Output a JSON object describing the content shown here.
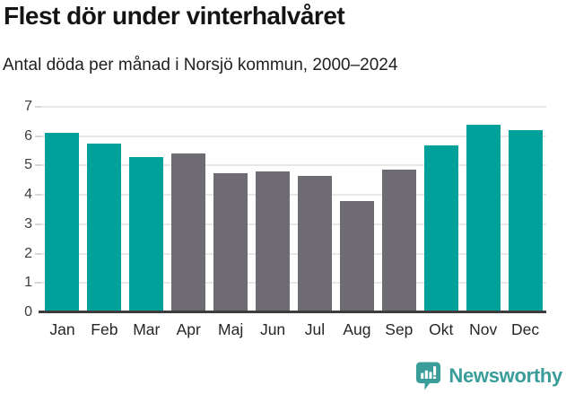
{
  "header": {
    "title": "Flest dör under vinterhalvåret",
    "subtitle": "Antal döda per månad i Norsjö kommun, 2000–2024"
  },
  "chart_data": {
    "type": "bar",
    "title": "Flest dör under vinterhalvåret",
    "subtitle": "Antal döda per månad i Norsjö kommun, 2000–2024",
    "categories": [
      "Jan",
      "Feb",
      "Mar",
      "Apr",
      "Maj",
      "Jun",
      "Jul",
      "Aug",
      "Sep",
      "Okt",
      "Nov",
      "Dec"
    ],
    "values": [
      6.1,
      5.75,
      5.3,
      5.4,
      4.75,
      4.8,
      4.65,
      3.8,
      4.85,
      5.7,
      6.4,
      6.2
    ],
    "bar_colors": [
      "#00a19a",
      "#00a19a",
      "#00a19a",
      "#6e6c72",
      "#6e6c72",
      "#6e6c72",
      "#6e6c72",
      "#6e6c72",
      "#6e6c72",
      "#00a19a",
      "#00a19a",
      "#00a19a"
    ],
    "highlight_color": "#00a19a",
    "base_color": "#6e6c72",
    "highlight_indices": [
      0,
      1,
      2,
      9,
      10,
      11
    ],
    "xlabel": "",
    "ylabel": "",
    "ylim": [
      0,
      7
    ],
    "yticks": [
      0,
      1,
      2,
      3,
      4,
      5,
      6,
      7
    ],
    "ytick_labels": [
      "0",
      "1",
      "2",
      "3",
      "4",
      "5",
      "6",
      "7"
    ],
    "grid": true,
    "legend": false
  },
  "footer": {
    "brand": "Newsworthy",
    "logo_color": "#3a9d99"
  }
}
